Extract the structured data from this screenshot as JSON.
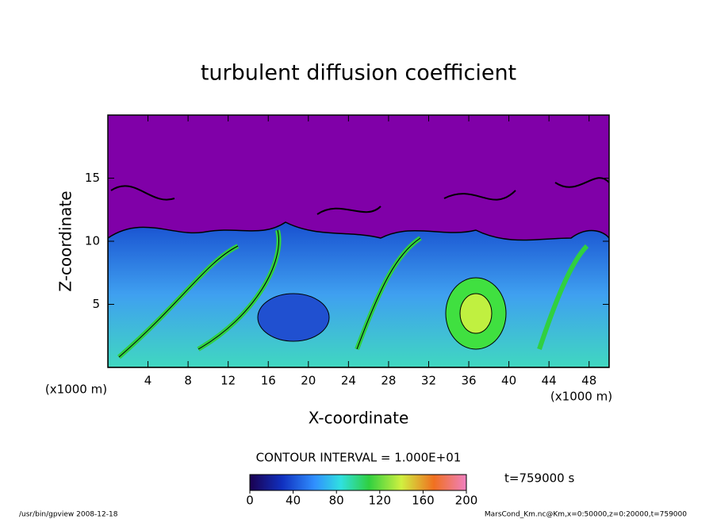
{
  "chart_data": {
    "type": "contour",
    "title": "turbulent diffusion coefficient",
    "xlabel": "X-coordinate",
    "ylabel": "Z-coordinate",
    "x_unit_label": "(x1000 m)",
    "y_unit_label": "(x1000 m)",
    "xlim": [
      0,
      50
    ],
    "xticks": [
      4,
      8,
      12,
      16,
      20,
      24,
      28,
      32,
      36,
      40,
      44,
      48
    ],
    "ylim": [
      0,
      20
    ],
    "yticks": [
      5,
      10,
      15
    ],
    "contour_interval": "CONTOUR INTERVAL = 1.000E+01",
    "colorbar": {
      "lim": [
        0,
        200
      ],
      "ticks": [
        0,
        40,
        80,
        120,
        160,
        200
      ]
    },
    "time_label": "t=759000 s",
    "footer_left": "/usr/bin/gpview  2008-12-18",
    "footer_right": "MarsCond_Km.nc@Km,x=0:50000,z=0:20000,t=759000"
  }
}
